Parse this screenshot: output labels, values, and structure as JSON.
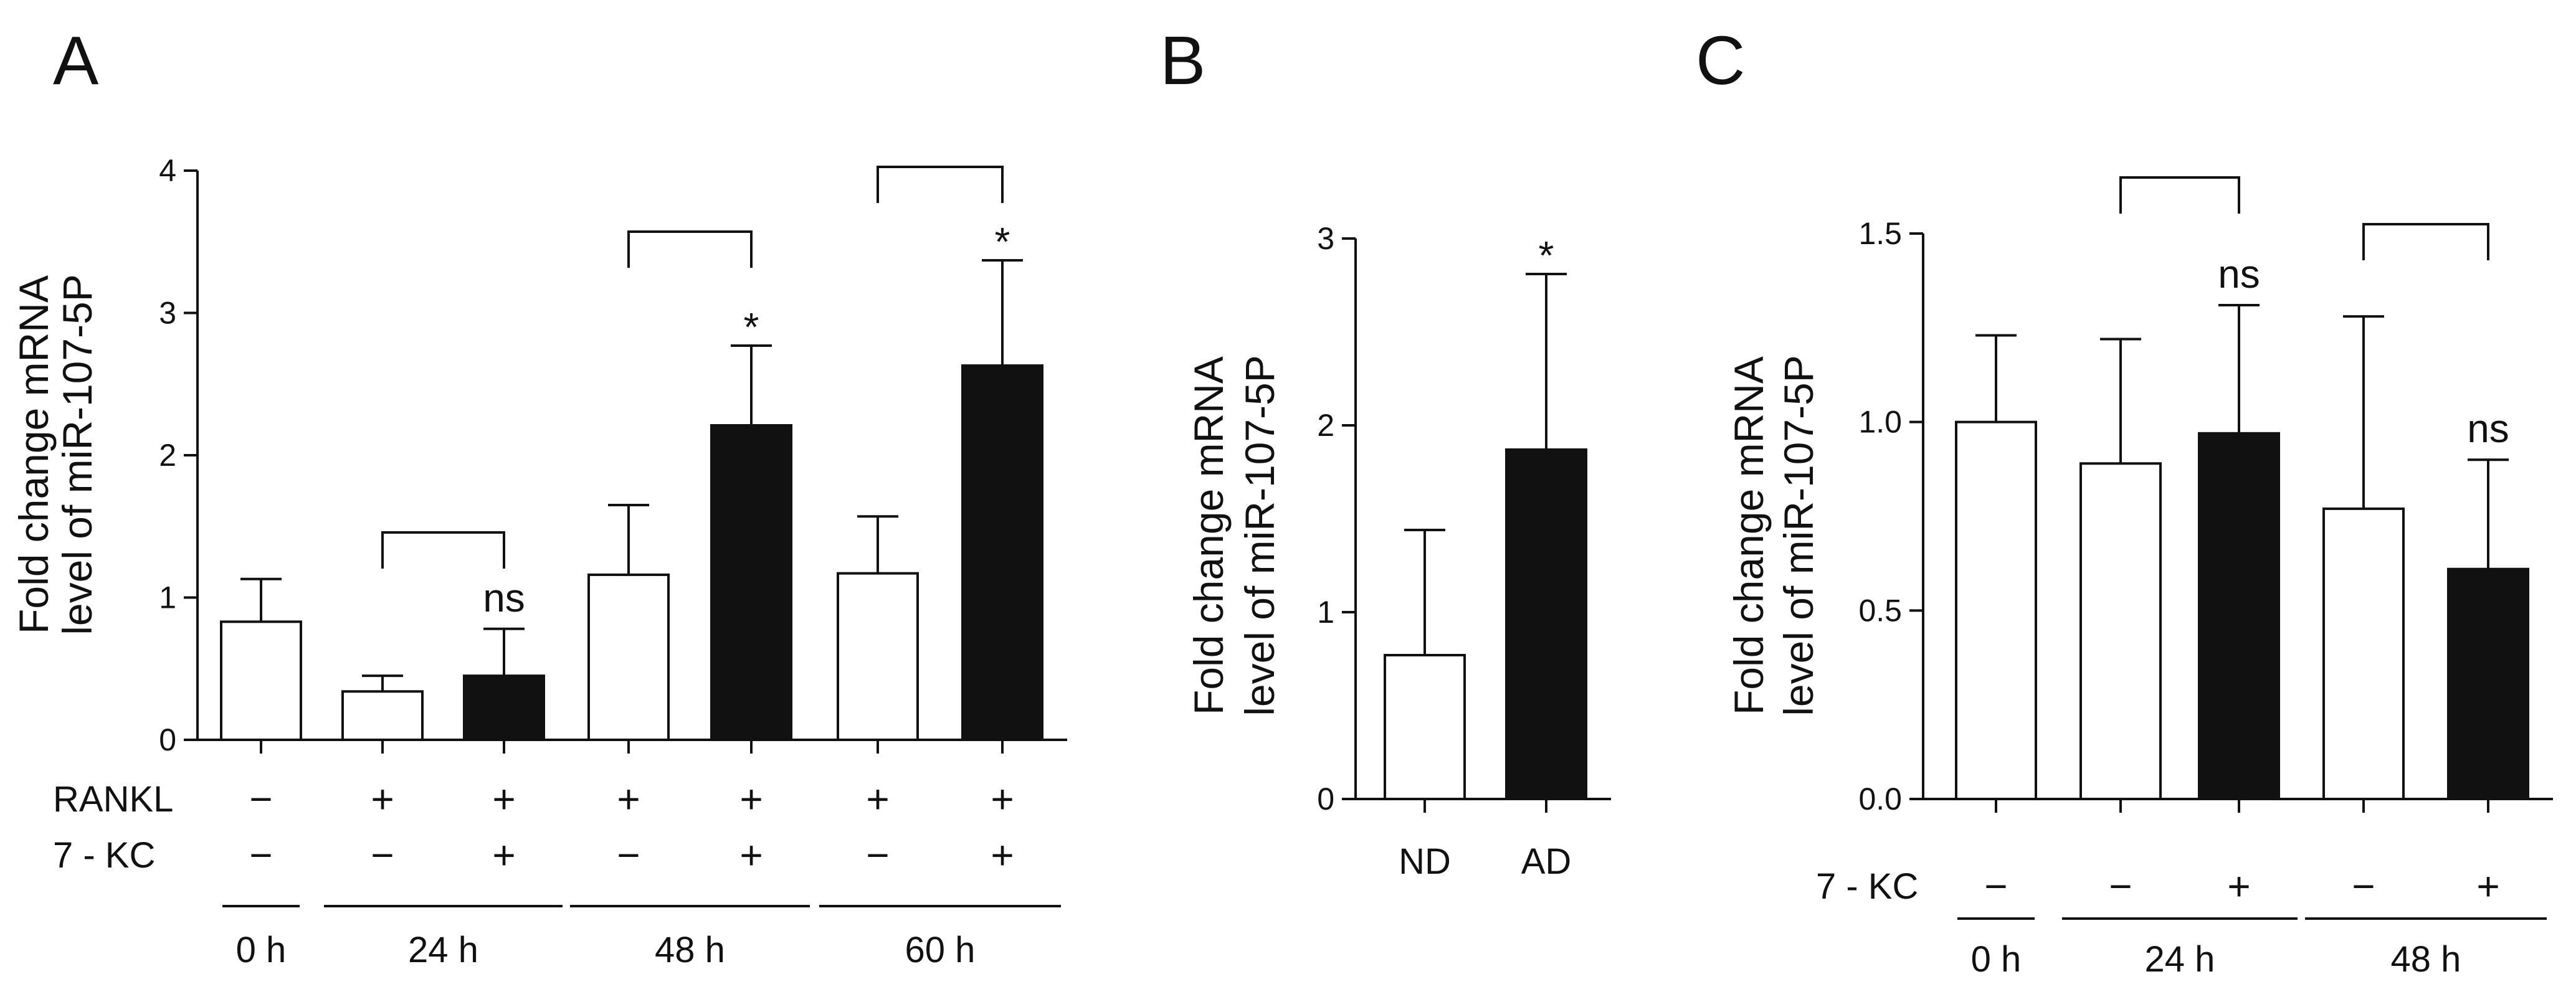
{
  "chart_data": [
    {
      "id": "A",
      "panel_label": "A",
      "type": "bar",
      "ylabel_lines": [
        "Fold change mRNA",
        "level of miR-107-5P"
      ],
      "ylim": [
        0,
        4
      ],
      "yticks": [
        0,
        1,
        2,
        3,
        4
      ],
      "ytick_labels": [
        "0",
        "1",
        "2",
        "3",
        "4"
      ],
      "bars": [
        {
          "value": 0.83,
          "error": 0.3,
          "style": "open",
          "sig": ""
        },
        {
          "value": 0.34,
          "error": 0.11,
          "style": "open",
          "sig": ""
        },
        {
          "value": 0.45,
          "error": 0.33,
          "style": "filled",
          "sig": "ns"
        },
        {
          "value": 1.16,
          "error": 0.49,
          "style": "open",
          "sig": ""
        },
        {
          "value": 2.21,
          "error": 0.56,
          "style": "filled",
          "sig": "*"
        },
        {
          "value": 1.17,
          "error": 0.4,
          "style": "open",
          "sig": ""
        },
        {
          "value": 2.63,
          "error": 0.74,
          "style": "filled",
          "sig": "*"
        }
      ],
      "brackets": [
        [
          1,
          2
        ],
        [
          3,
          4
        ],
        [
          5,
          6
        ]
      ],
      "rows": [
        {
          "label": "RANKL",
          "signs": [
            "−",
            "+",
            "+",
            "+",
            "+",
            "+",
            "+"
          ]
        },
        {
          "label": "7 - KC",
          "signs": [
            "−",
            "−",
            "+",
            "−",
            "+",
            "−",
            "+"
          ]
        }
      ],
      "groups": [
        {
          "label": "0 h",
          "bars": [
            0,
            0
          ]
        },
        {
          "label": "24 h",
          "bars": [
            1,
            2
          ]
        },
        {
          "label": "48 h",
          "bars": [
            3,
            4
          ]
        },
        {
          "label": "60 h",
          "bars": [
            5,
            6
          ]
        }
      ]
    },
    {
      "id": "B",
      "panel_label": "B",
      "type": "bar",
      "ylabel_lines": [
        "Fold change mRNA",
        "level of miR-107-5P"
      ],
      "ylim": [
        0,
        3
      ],
      "yticks": [
        0,
        1,
        2,
        3
      ],
      "ytick_labels": [
        "0",
        "1",
        "2",
        "3"
      ],
      "bars": [
        {
          "value": 0.77,
          "error": 0.67,
          "style": "open",
          "sig": ""
        },
        {
          "value": 1.87,
          "error": 0.94,
          "style": "filled",
          "sig": "*"
        }
      ],
      "categories": [
        "ND",
        "AD"
      ],
      "brackets": [],
      "rows": [],
      "groups": []
    },
    {
      "id": "C",
      "panel_label": "C",
      "type": "bar",
      "ylabel_lines": [
        "Fold change mRNA",
        "level of miR-107-5P"
      ],
      "ylim": [
        0,
        1.5
      ],
      "yticks": [
        0,
        0.5,
        1.0,
        1.5
      ],
      "ytick_labels": [
        "0.0",
        "0.5",
        "1.0",
        "1.5"
      ],
      "bars": [
        {
          "value": 1.0,
          "error": 0.23,
          "style": "open",
          "sig": ""
        },
        {
          "value": 0.89,
          "error": 0.33,
          "style": "open",
          "sig": ""
        },
        {
          "value": 0.97,
          "error": 0.34,
          "style": "filled",
          "sig": "ns"
        },
        {
          "value": 0.77,
          "error": 0.51,
          "style": "open",
          "sig": ""
        },
        {
          "value": 0.61,
          "error": 0.29,
          "style": "filled",
          "sig": "ns"
        }
      ],
      "brackets": [
        [
          1,
          2
        ],
        [
          3,
          4
        ]
      ],
      "rows": [
        {
          "label": "7 - KC",
          "signs": [
            "−",
            "−",
            "+",
            "−",
            "+"
          ]
        }
      ],
      "groups": [
        {
          "label": "0 h",
          "bars": [
            0,
            0
          ]
        },
        {
          "label": "24 h",
          "bars": [
            1,
            2
          ]
        },
        {
          "label": "48 h",
          "bars": [
            3,
            4
          ]
        }
      ]
    }
  ]
}
